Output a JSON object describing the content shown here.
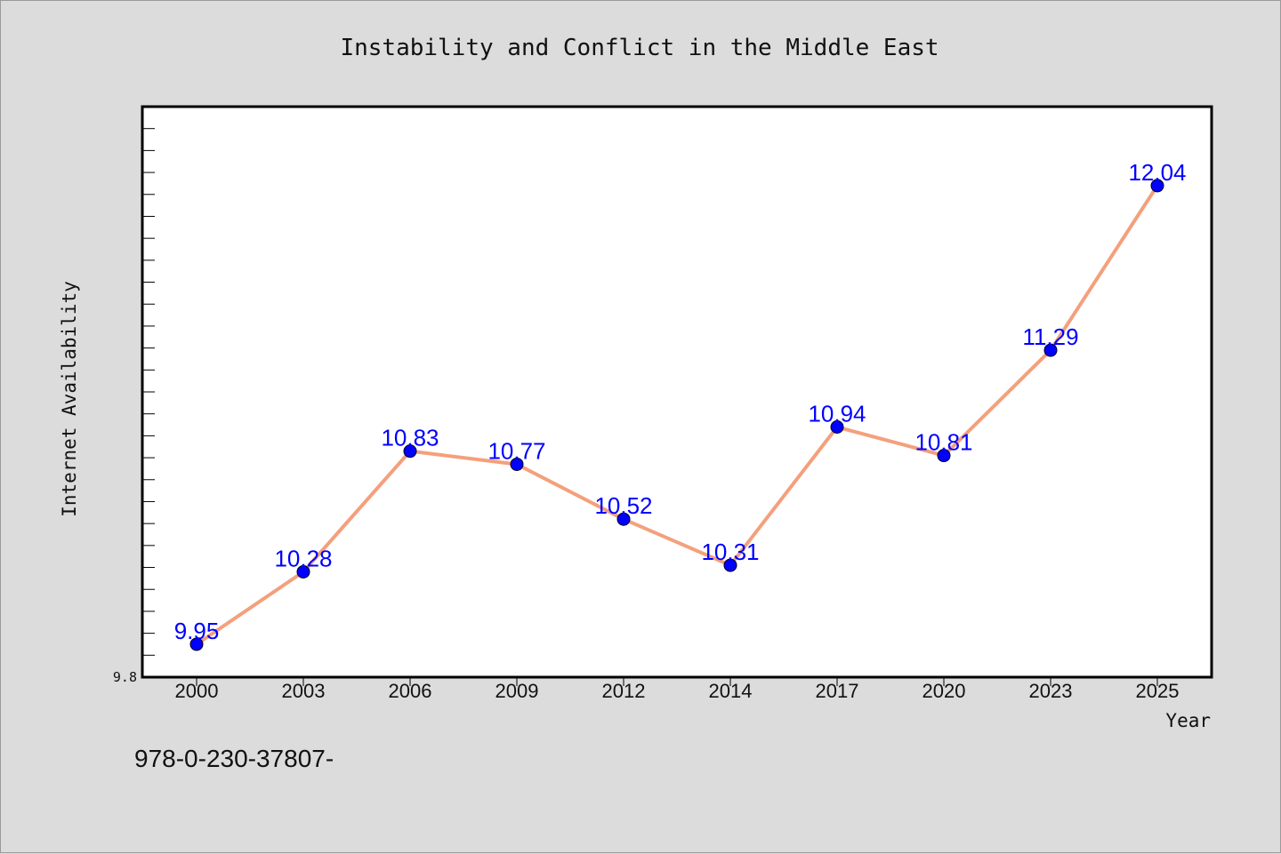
{
  "chart_data": {
    "type": "line",
    "title": "Instability and Conflict in the Middle East",
    "xlabel": "Year",
    "ylabel": "Internet Availability",
    "categories": [
      "2000",
      "2003",
      "2006",
      "2009",
      "2012",
      "2014",
      "2017",
      "2020",
      "2023",
      "2025"
    ],
    "series": [
      {
        "values": [
          9.95,
          10.28,
          10.83,
          10.77,
          10.52,
          10.31,
          10.94,
          10.81,
          11.29,
          12.04
        ]
      }
    ],
    "data_labels": [
      "9.95",
      "10.28",
      "10.83",
      "10.77",
      "10.52",
      "10.31",
      "10.94",
      "10.81",
      "11.29",
      "12.04"
    ],
    "ylim": [
      9.8,
      12.4
    ],
    "ytick_labels": [
      "9.8"
    ],
    "grid": false,
    "colors": {
      "line": "#f4a07c",
      "marker": "#0000ff",
      "label": "#0000ff",
      "background": "#dcdcdc",
      "plot_area": "#ffffff"
    }
  },
  "footer_text": "978-0-230-37807-"
}
